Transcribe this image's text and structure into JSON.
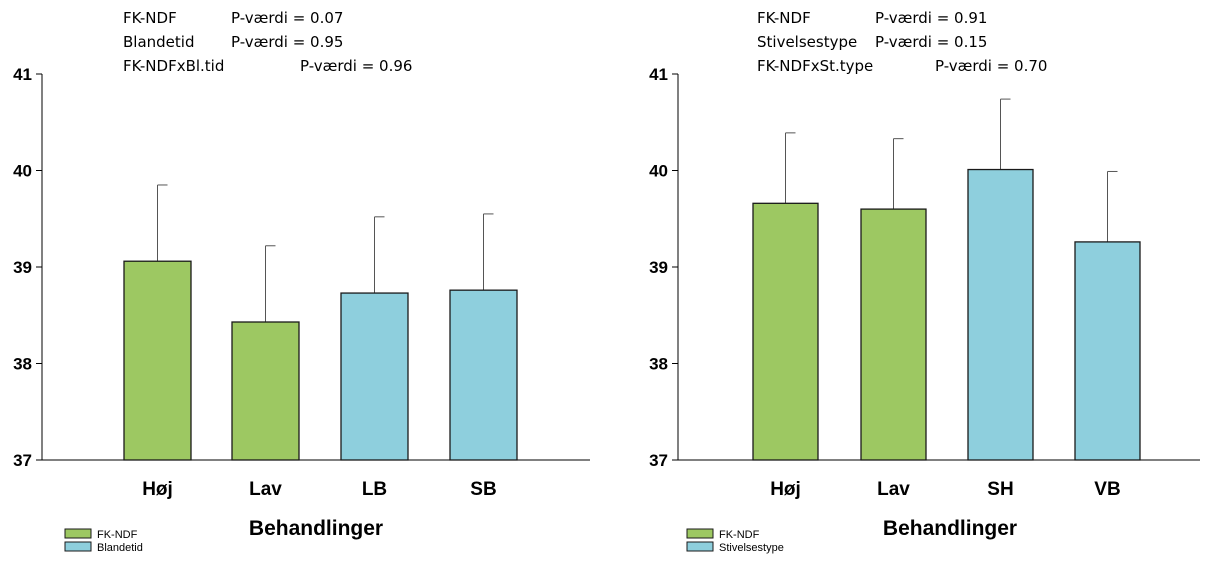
{
  "chart_data": [
    {
      "type": "bar",
      "annotations": [
        {
          "term": "FK-NDF",
          "p_text": "P-værdi = 0.07"
        },
        {
          "term": "Blandetid",
          "p_text": "P-værdi = 0.95"
        },
        {
          "term": "FK-NDFxBl.tid",
          "p_text": "P-værdi = 0.96"
        }
      ],
      "categories": [
        "Høj",
        "Lav",
        "LB",
        "SB"
      ],
      "values": [
        39.06,
        38.43,
        38.73,
        38.76
      ],
      "errors": [
        0.79,
        0.79,
        0.79,
        0.79
      ],
      "group": [
        0,
        0,
        1,
        1
      ],
      "legend": [
        "FK-NDF",
        "Blandetid"
      ],
      "xlabel": "Behandlinger",
      "ylim": [
        37,
        41
      ],
      "yticks": [
        37,
        38,
        39,
        40,
        41
      ],
      "legend_position": "bottom-left"
    },
    {
      "type": "bar",
      "annotations": [
        {
          "term": "FK-NDF",
          "p_text": "P-værdi = 0.91"
        },
        {
          "term": "Stivelsestype",
          "p_text": "P-værdi = 0.15"
        },
        {
          "term": "FK-NDFxSt.type",
          "p_text": "P-værdi = 0.70"
        }
      ],
      "categories": [
        "Høj",
        "Lav",
        "SH",
        "VB"
      ],
      "values": [
        39.66,
        39.6,
        40.01,
        39.26
      ],
      "errors": [
        0.73,
        0.73,
        0.73,
        0.73
      ],
      "group": [
        0,
        0,
        1,
        1
      ],
      "legend": [
        "FK-NDF",
        "Stivelsestype"
      ],
      "xlabel": "Behandlinger",
      "ylim": [
        37,
        41
      ],
      "yticks": [
        37,
        38,
        39,
        40,
        41
      ],
      "legend_position": "bottom-left"
    }
  ],
  "colors": {
    "group0": "#9dc862",
    "group1": "#8ecfdd",
    "outline": "#1a1a1a",
    "errorbar": "#555555"
  }
}
